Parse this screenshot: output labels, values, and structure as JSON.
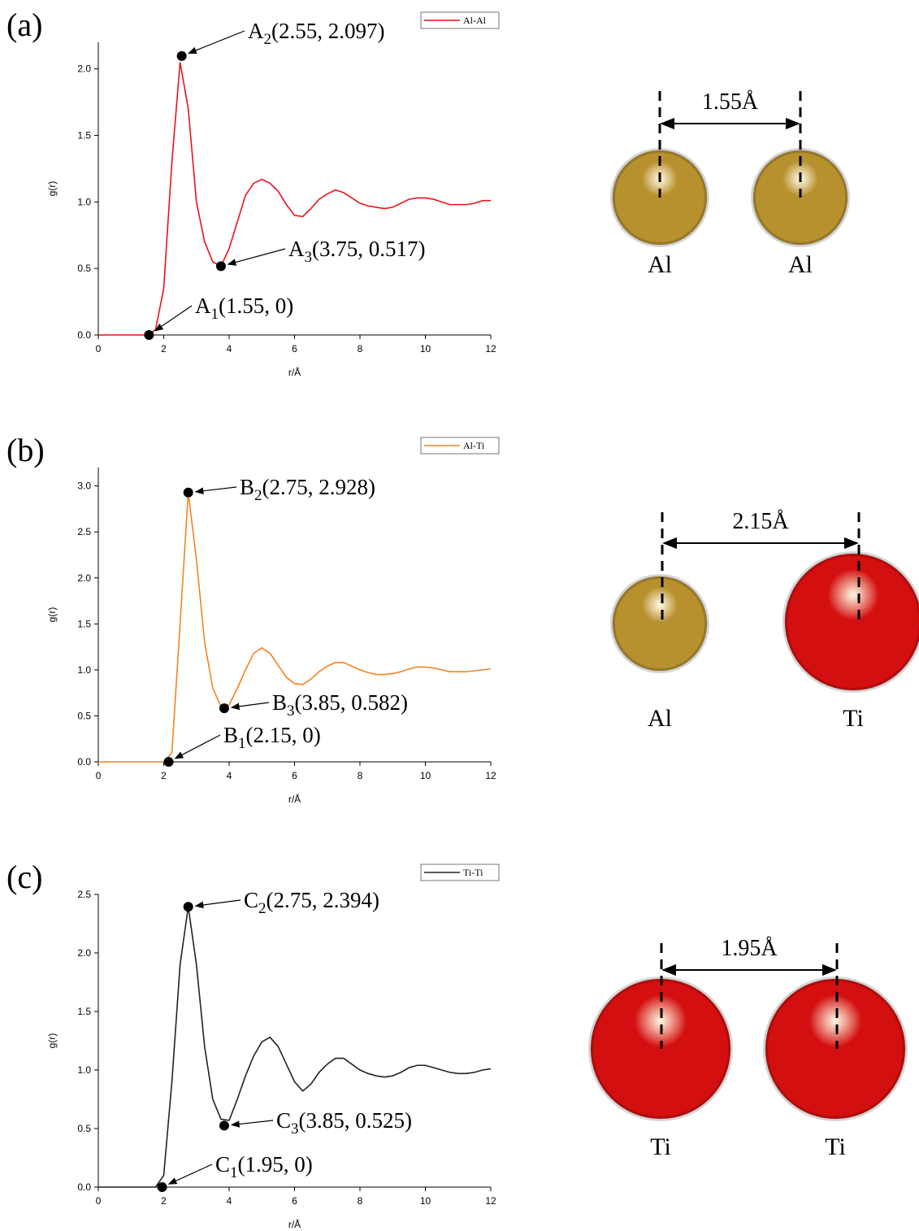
{
  "chart_data": [
    {
      "type": "line",
      "panel": "(a)",
      "x_label": "r/Å",
      "y_label": "g(r)",
      "x": [
        0,
        0.25,
        0.5,
        0.75,
        1,
        1.25,
        1.5,
        1.75,
        2,
        2.25,
        2.5,
        2.75,
        3,
        3.25,
        3.5,
        3.75,
        4,
        4.25,
        4.5,
        4.75,
        5,
        5.25,
        5.5,
        5.75,
        6,
        6.25,
        6.5,
        6.75,
        7,
        7.25,
        7.5,
        7.75,
        8,
        8.25,
        8.5,
        8.75,
        9,
        9.25,
        9.5,
        9.75,
        10,
        10.25,
        10.5,
        10.75,
        11,
        11.25,
        11.5,
        11.75,
        12
      ],
      "series": [
        {
          "name": "Al-Al",
          "color": "#e8141b",
          "values": [
            0,
            0,
            0,
            0,
            0,
            0,
            0,
            0.04,
            0.35,
            1.3,
            2.05,
            1.7,
            1.0,
            0.7,
            0.55,
            0.517,
            0.65,
            0.85,
            1.05,
            1.14,
            1.17,
            1.14,
            1.08,
            0.98,
            0.9,
            0.89,
            0.95,
            1.02,
            1.06,
            1.09,
            1.07,
            1.03,
            0.99,
            0.97,
            0.96,
            0.95,
            0.96,
            0.99,
            1.02,
            1.03,
            1.03,
            1.02,
            1.0,
            0.98,
            0.98,
            0.98,
            0.99,
            1.01,
            1.01
          ]
        }
      ],
      "xlim": [
        0,
        12
      ],
      "xticks": [
        0,
        2,
        4,
        6,
        8,
        10,
        12
      ],
      "ylim": [
        0,
        2.2
      ],
      "yticks": [
        {
          "value": 0,
          "label": "0.0"
        },
        {
          "value": 0.5,
          "label": "0.5"
        },
        {
          "value": 1,
          "label": "1.0"
        },
        {
          "value": 1.5,
          "label": "1.5"
        },
        {
          "value": 2,
          "label": "2.0"
        }
      ],
      "annotations": [
        {
          "letter": "A",
          "sub": "1",
          "text": "(1.55, 0)",
          "x": 1.55,
          "y": 0
        },
        {
          "letter": "A",
          "sub": "2",
          "text": "(2.55, 2.097)",
          "x": 2.55,
          "y": 2.097
        },
        {
          "letter": "A",
          "sub": "3",
          "text": "(3.75, 0.517)",
          "x": 3.75,
          "y": 0.517
        }
      ]
    },
    {
      "type": "line",
      "panel": "(b)",
      "x_label": "r/Å",
      "y_label": "g(r)",
      "x": [
        0,
        0.25,
        0.5,
        0.75,
        1,
        1.25,
        1.5,
        1.75,
        2,
        2.25,
        2.5,
        2.75,
        3,
        3.25,
        3.5,
        3.75,
        4,
        4.25,
        4.5,
        4.75,
        5,
        5.25,
        5.5,
        5.75,
        6,
        6.25,
        6.5,
        6.75,
        7,
        7.25,
        7.5,
        7.75,
        8,
        8.25,
        8.5,
        8.75,
        9,
        9.25,
        9.5,
        9.75,
        10,
        10.25,
        10.5,
        10.75,
        11,
        11.25,
        11.5,
        11.75,
        12
      ],
      "series": [
        {
          "name": "Al-Ti",
          "color": "#f58220",
          "values": [
            0,
            0,
            0,
            0,
            0,
            0,
            0,
            0,
            0,
            0.1,
            1.5,
            2.928,
            2.2,
            1.3,
            0.8,
            0.6,
            0.62,
            0.8,
            1.0,
            1.18,
            1.24,
            1.18,
            1.05,
            0.92,
            0.85,
            0.84,
            0.9,
            0.98,
            1.04,
            1.08,
            1.08,
            1.04,
            1.0,
            0.97,
            0.95,
            0.95,
            0.96,
            0.98,
            1.01,
            1.03,
            1.03,
            1.02,
            1.0,
            0.98,
            0.98,
            0.98,
            0.99,
            1.0,
            1.01
          ]
        }
      ],
      "xlim": [
        0,
        12
      ],
      "xticks": [
        0,
        2,
        4,
        6,
        8,
        10,
        12
      ],
      "ylim": [
        0,
        3.2
      ],
      "yticks": [
        {
          "value": 0,
          "label": "0.0"
        },
        {
          "value": 0.5,
          "label": "0.5"
        },
        {
          "value": 1,
          "label": "1.0"
        },
        {
          "value": 1.5,
          "label": "1.5"
        },
        {
          "value": 2,
          "label": "2.0"
        },
        {
          "value": 2.5,
          "label": "2.5"
        },
        {
          "value": 3,
          "label": "3.0"
        }
      ],
      "annotations": [
        {
          "letter": "B",
          "sub": "1",
          "text": "(2.15, 0)",
          "x": 2.15,
          "y": 0
        },
        {
          "letter": "B",
          "sub": "2",
          "text": "(2.75, 2.928)",
          "x": 2.75,
          "y": 2.928
        },
        {
          "letter": "B",
          "sub": "3",
          "text": "(3.85, 0.582)",
          "x": 3.85,
          "y": 0.582
        }
      ]
    },
    {
      "type": "line",
      "panel": "(c)",
      "x_label": "r/Å",
      "y_label": "g(r)",
      "x": [
        0,
        0.25,
        0.5,
        0.75,
        1,
        1.25,
        1.5,
        1.75,
        2,
        2.25,
        2.5,
        2.75,
        3,
        3.25,
        3.5,
        3.75,
        4,
        4.25,
        4.5,
        4.75,
        5,
        5.25,
        5.5,
        5.75,
        6,
        6.25,
        6.5,
        6.75,
        7,
        7.25,
        7.5,
        7.75,
        8,
        8.25,
        8.5,
        8.75,
        9,
        9.25,
        9.5,
        9.75,
        10,
        10.25,
        10.5,
        10.75,
        11,
        11.25,
        11.5,
        11.75,
        12
      ],
      "series": [
        {
          "name": "Ti-Ti",
          "color": "#222222",
          "values": [
            0,
            0,
            0,
            0,
            0,
            0,
            0,
            0,
            0.1,
            0.9,
            1.9,
            2.394,
            1.9,
            1.2,
            0.75,
            0.58,
            0.57,
            0.75,
            0.95,
            1.12,
            1.24,
            1.28,
            1.2,
            1.05,
            0.9,
            0.82,
            0.88,
            0.98,
            1.05,
            1.1,
            1.1,
            1.05,
            1.0,
            0.97,
            0.95,
            0.94,
            0.95,
            0.98,
            1.02,
            1.04,
            1.04,
            1.02,
            1.0,
            0.98,
            0.97,
            0.97,
            0.98,
            1.0,
            1.01
          ]
        }
      ],
      "xlim": [
        0,
        12
      ],
      "xticks": [
        0,
        2,
        4,
        6,
        8,
        10,
        12
      ],
      "ylim": [
        0,
        2.5
      ],
      "yticks": [
        {
          "value": 0,
          "label": "0.0"
        },
        {
          "value": 0.5,
          "label": "0.5"
        },
        {
          "value": 1,
          "label": "1.0"
        },
        {
          "value": 1.5,
          "label": "1.5"
        },
        {
          "value": 2,
          "label": "2.0"
        },
        {
          "value": 2.5,
          "label": "2.5"
        }
      ],
      "annotations": [
        {
          "letter": "C",
          "sub": "1",
          "text": "(1.95, 0)",
          "x": 1.95,
          "y": 0
        },
        {
          "letter": "C",
          "sub": "2",
          "text": "(2.75, 2.394)",
          "x": 2.75,
          "y": 2.394
        },
        {
          "letter": "C",
          "sub": "3",
          "text": "(3.85, 0.525)",
          "x": 3.85,
          "y": 0.525
        }
      ]
    }
  ],
  "diagrams": [
    {
      "distance": "1.55Å",
      "atoms": [
        {
          "name": "Al",
          "color": "#b8912f"
        },
        {
          "name": "Al",
          "color": "#b8912f"
        }
      ]
    },
    {
      "distance": "2.15Å",
      "atoms": [
        {
          "name": "Al",
          "color": "#b8912f"
        },
        {
          "name": "Ti",
          "color": "#d40f0f"
        }
      ]
    },
    {
      "distance": "1.95Å",
      "atoms": [
        {
          "name": "Ti",
          "color": "#d40f0f"
        },
        {
          "name": "Ti",
          "color": "#d40f0f"
        }
      ]
    }
  ]
}
